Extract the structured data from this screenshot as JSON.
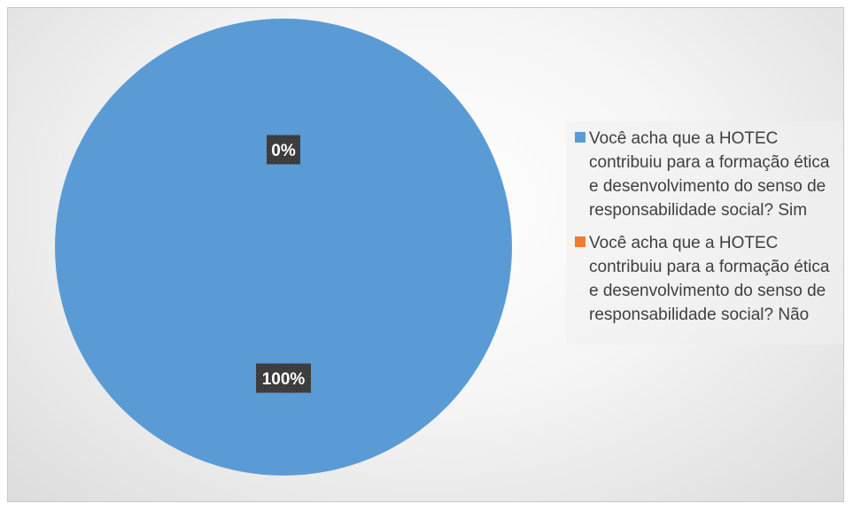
{
  "chart_data": {
    "type": "pie",
    "title": "",
    "slices": [
      {
        "label": "Você acha que a HOTEC contribuiu para a formação ética e desenvolvimento do senso de responsabilidade social? Sim",
        "value": 100,
        "display": "100%",
        "color": "#5b9bd5"
      },
      {
        "label": "Você acha que a HOTEC contribuiu para a formação ética e desenvolvimento do senso de responsabilidade social? Não",
        "value": 0,
        "display": "0%",
        "color": "#ed7d31"
      }
    ],
    "legend_position": "right"
  }
}
